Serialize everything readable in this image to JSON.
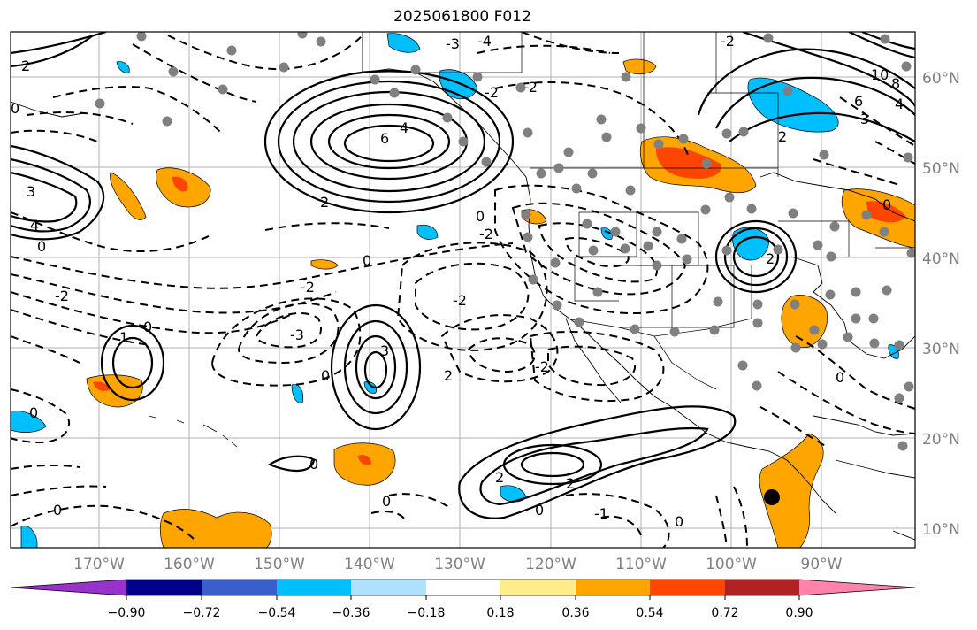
{
  "title": "2025061800 F012",
  "lat_labels": [
    "60°N",
    "50°N",
    "40°N",
    "30°N",
    "20°N",
    "10°N"
  ],
  "lon_labels": [
    "170°W",
    "160°W",
    "150°W",
    "140°W",
    "130°W",
    "120°W",
    "110°W",
    "100°W",
    "90°W"
  ],
  "colorbar": {
    "ticks": [
      "−0.90",
      "−0.72",
      "−0.54",
      "−0.36",
      "−0.18",
      "0.18",
      "0.36",
      "0.54",
      "0.72",
      "0.90"
    ],
    "colors": [
      "#9932cc",
      "#00008b",
      "#3a5fcd",
      "#00bfff",
      "#b0e2ff",
      "#ffffff",
      "#ffec8b",
      "#ffa500",
      "#ff4500",
      "#b22222",
      "#ff83aa"
    ]
  },
  "contour_labels": [
    "1",
    "2",
    "3",
    "4",
    "6",
    "8",
    "10",
    "0",
    "-1",
    "-2",
    "-3",
    "-4"
  ],
  "fill_colors": {
    "positive_light": "#ffa500",
    "positive_strong": "#ff4500",
    "negative_light": "#00bfff",
    "marker": "#808080"
  }
}
